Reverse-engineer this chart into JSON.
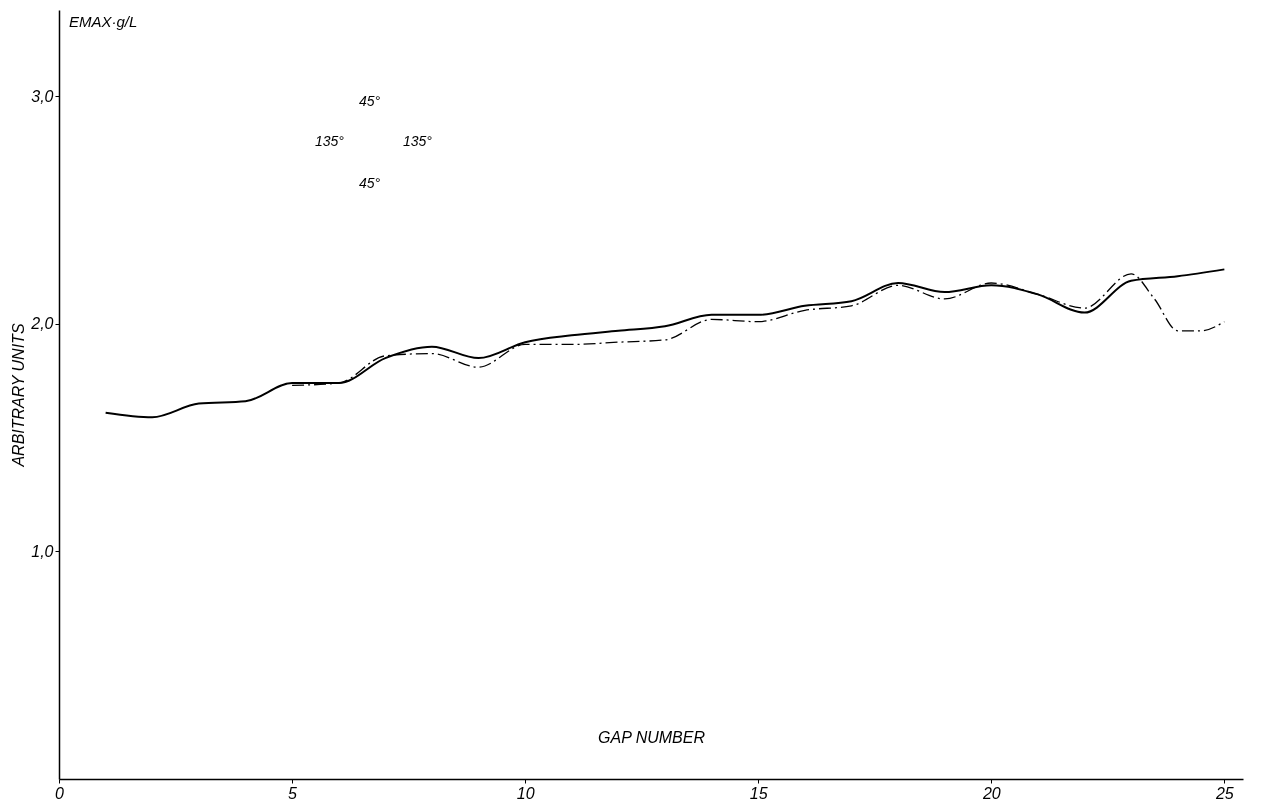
{
  "chart_data": {
    "type": "line",
    "xlabel": "GAP NUMBER",
    "ylabel": "ARBITRARY UNITS",
    "annotations": [
      "EMAX·g/L",
      "45°",
      "135°",
      "135°",
      "45°"
    ],
    "xlim": [
      0,
      25.4
    ],
    "ylim": [
      0,
      3.38
    ],
    "xticks": [
      0,
      5,
      10,
      15,
      20,
      25
    ],
    "yticks": [
      {
        "value": 1,
        "label": "1,0"
      },
      {
        "value": 2,
        "label": "2,0"
      },
      {
        "value": 3,
        "label": "3,0"
      }
    ],
    "grid": false,
    "marker": "none",
    "series": [
      {
        "color": "#000000",
        "line_style": "solid",
        "x": [
          1,
          2,
          3,
          4,
          5,
          6,
          7,
          8,
          9,
          10,
          11,
          12,
          13,
          14,
          15,
          16,
          17,
          18,
          19,
          20,
          21,
          22,
          23,
          24,
          25
        ],
        "values": [
          1.61,
          1.59,
          1.65,
          1.66,
          1.74,
          1.74,
          1.85,
          1.9,
          1.85,
          1.92,
          1.95,
          1.97,
          1.99,
          2.04,
          2.04,
          2.08,
          2.1,
          2.18,
          2.14,
          2.17,
          2.13,
          2.05,
          2.19,
          2.21,
          2.24
        ]
      },
      {
        "color": "#000000",
        "line_style": "dashed",
        "x": [
          5,
          6,
          7,
          8,
          9,
          10,
          11,
          12,
          13,
          14,
          15,
          16,
          17,
          18,
          19,
          20,
          21,
          22,
          23,
          23.5,
          24,
          24.5,
          25
        ],
        "values": [
          1.73,
          1.74,
          1.86,
          1.87,
          1.81,
          1.91,
          1.91,
          1.92,
          1.93,
          2.02,
          2.01,
          2.06,
          2.08,
          2.17,
          2.11,
          2.18,
          2.13,
          2.07,
          2.22,
          2.11,
          1.97,
          1.97,
          2.01
        ]
      }
    ]
  }
}
